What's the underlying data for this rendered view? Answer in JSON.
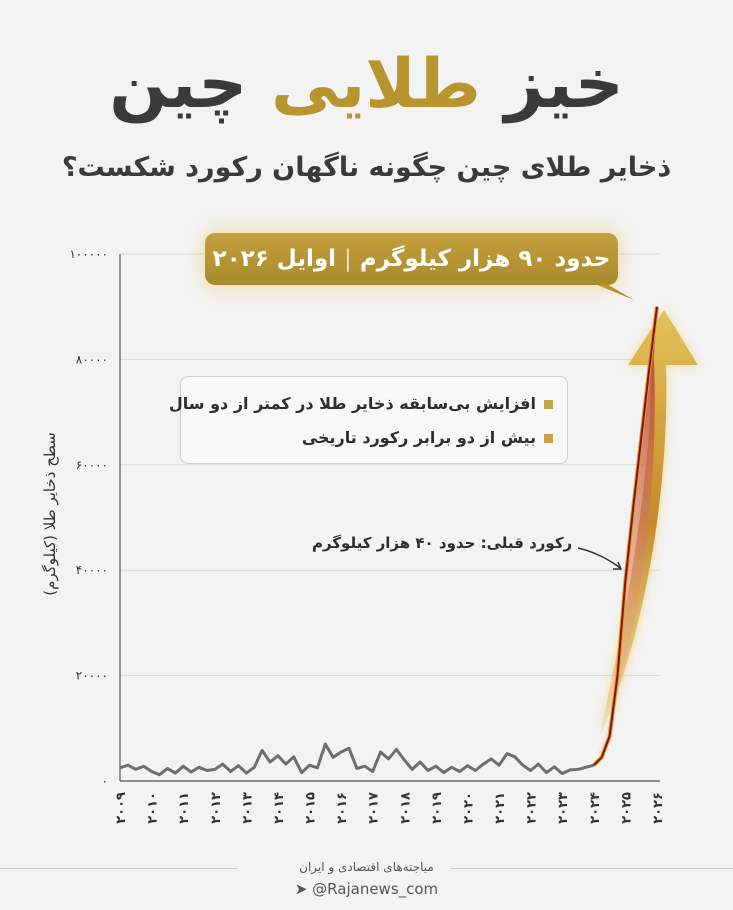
{
  "header": {
    "title_part1": "خیز",
    "title_highlight": "طلایی",
    "title_part2": "چین",
    "subtitle": "ذخایر طلای چین چگونه ناگهان رکورد شکست؟"
  },
  "callout": {
    "amount": "حدود ۹۰ هزار کیلوگرم",
    "separator": "|",
    "date": "اوایل ۲۰۲۶"
  },
  "legend": {
    "items": [
      "افزایش بی‌سابقه ذخایر طلا در کمتر از دو سال",
      "بیش از دو برابر رکورد تاریخی"
    ]
  },
  "annotation": "رکورد قبلی: حدود ۴۰ هزار کیلوگرم",
  "footer": {
    "line1": "میاجته‌های اقتصادی و ایران",
    "handle": "@Rajanews_com",
    "icon": "telegram-icon"
  },
  "colors": {
    "gold": "#b8952f",
    "historic_line": "#6e6e6e",
    "surge_line": "#8b1010",
    "text": "#3a3a3a"
  },
  "chart_data": {
    "type": "line",
    "title": "خیز طلایی چین",
    "ylabel": "سطح ذخایر طلا (کیلوگرم)",
    "xlabel": "",
    "ylim": [
      0,
      100000
    ],
    "xlim": [
      2009,
      2026
    ],
    "grid": true,
    "y_ticks": [
      "۰",
      "۲۰۰۰۰",
      "۴۰۰۰۰",
      "۶۰۰۰۰",
      "۸۰۰۰۰",
      "۱۰۰۰۰۰"
    ],
    "y_tick_values": [
      0,
      20000,
      40000,
      60000,
      80000,
      100000
    ],
    "x_ticks": [
      "۲۰۰۹",
      "۲۰۱۰",
      "۲۰۱۱",
      "۲۰۱۲",
      "۲۰۱۳",
      "۲۰۱۴",
      "۲۰۱۵",
      "۲۰۱۶",
      "۲۰۱۷",
      "۲۰۱۸",
      "۲۰۱۹",
      "۲۰۲۰",
      "۲۰۲۱",
      "۲۰۲۲",
      "۲۰۲۳",
      "۲۰۲۴",
      "۲۰۲۵",
      "۲۰۲۶"
    ],
    "x_tick_values": [
      2009,
      2010,
      2011,
      2012,
      2013,
      2014,
      2015,
      2016,
      2017,
      2018,
      2019,
      2020,
      2021,
      2022,
      2023,
      2024,
      2025,
      2026
    ],
    "series": [
      {
        "x": [
          2009,
          2009.25,
          2009.5,
          2009.75,
          2010,
          2010.25,
          2010.5,
          2010.75,
          2011,
          2011.25,
          2011.5,
          2011.75,
          2012,
          2012.25,
          2012.5,
          2012.75,
          2013,
          2013.25,
          2013.5,
          2013.75,
          2014,
          2014.25,
          2014.5,
          2014.75,
          2015,
          2015.25,
          2015.5,
          2015.75,
          2016,
          2016.25,
          2016.5,
          2016.75,
          2017,
          2017.25,
          2017.5,
          2017.75,
          2018,
          2018.25,
          2018.5,
          2018.75,
          2019,
          2019.25,
          2019.5,
          2019.75,
          2020,
          2020.25,
          2020.5,
          2020.75,
          2021,
          2021.25,
          2021.5,
          2021.75,
          2022,
          2022.25,
          2022.5,
          2022.75,
          2023,
          2023.25,
          2023.5,
          2023.75,
          2024
        ],
        "values": [
          2500,
          3000,
          2200,
          2800,
          1800,
          1200,
          2400,
          1500,
          2800,
          1700,
          2600,
          2000,
          2200,
          3200,
          1800,
          2900,
          1500,
          2600,
          5800,
          3600,
          4800,
          3200,
          4600,
          1600,
          3000,
          2500,
          7000,
          4500,
          5500,
          6200,
          2400,
          2800,
          1800,
          5500,
          4200,
          6000,
          4000,
          2200,
          3600,
          2000,
          2800,
          1600,
          2600,
          1800,
          2900,
          2000,
          3200,
          4200,
          3000,
          5200,
          4600,
          3000,
          2000,
          3200,
          1600,
          2700,
          1400,
          2100,
          2200,
          2600,
          3000
        ]
      },
      {
        "x": [
          2024,
          2024.25,
          2024.5,
          2024.75,
          2025,
          2025.25,
          2025.5,
          2025.75,
          2026
        ],
        "values": [
          3000,
          4500,
          8500,
          20000,
          38000,
          52000,
          65000,
          78000,
          90000
        ]
      }
    ]
  }
}
